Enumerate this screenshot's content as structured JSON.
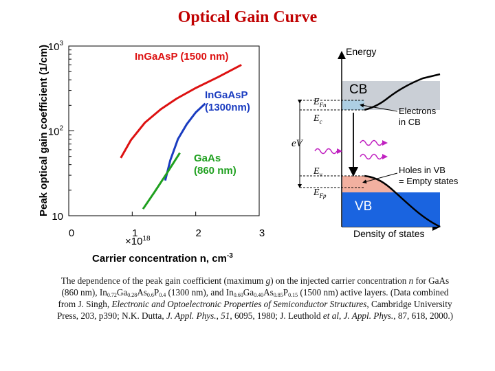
{
  "slide": {
    "title": "Optical Gain Curve"
  },
  "colors": {
    "title": "#c00000",
    "inp1500": "#dd1111",
    "inp1300": "#1a3cc0",
    "gaas": "#1fa01f",
    "cb": "#b8c0c8",
    "vb": "#1a64e0",
    "holes": "#f2b0a0"
  },
  "chart_data": {
    "type": "line",
    "ylabel": "Peak optical gain coefficient (1/cm)",
    "xlabel": "Carrier concentration n, cm",
    "xlabel_exp": "-3",
    "x_scale_label": "×10",
    "x_scale_exp": "18",
    "y_scale": "log",
    "xlim": [
      0,
      3
    ],
    "ylim": [
      10,
      1000
    ],
    "xticks": [
      {
        "v": 0,
        "label": "0"
      },
      {
        "v": 1,
        "label": "1"
      },
      {
        "v": 2,
        "label": "2"
      },
      {
        "v": 3,
        "label": "3"
      }
    ],
    "yticks": [
      {
        "v": 10,
        "label": "10"
      },
      {
        "v": 100,
        "label": "10",
        "exp": "2"
      },
      {
        "v": 1000,
        "label": "10",
        "exp": "3"
      }
    ],
    "series": [
      {
        "name": "InGaAsP (1500 nm)",
        "name_lines": [
          "InGaAsP (1500 nm)"
        ],
        "color": "#dd1111",
        "x": [
          0.82,
          0.98,
          1.2,
          1.45,
          1.7,
          2.0,
          2.35,
          2.72
        ],
        "y": [
          48,
          78,
          125,
          180,
          240,
          320,
          430,
          600
        ]
      },
      {
        "name": "InGaAsP (1300nm)",
        "name_lines": [
          "InGaAsP",
          "(1300nm)"
        ],
        "color": "#1a3cc0",
        "x": [
          1.52,
          1.6,
          1.72,
          1.86,
          2.0,
          2.15
        ],
        "y": [
          26,
          45,
          80,
          120,
          165,
          210
        ]
      },
      {
        "name": "GaAs (860 nm)",
        "name_lines": [
          "GaAs",
          "(860 nm)"
        ],
        "color": "#1fa01f",
        "x": [
          1.17,
          1.35,
          1.55,
          1.75
        ],
        "y": [
          12,
          19,
          32,
          55
        ]
      }
    ]
  },
  "band_diagram": {
    "energy_label": "Energy",
    "cb_label": "CB",
    "vb_label": "VB",
    "efn": "E",
    "efn_sub": "Fn",
    "ec": "E",
    "ec_sub": "c",
    "ev": "E",
    "ev_sub": "v",
    "efp": "E",
    "efp_sub": "Fp",
    "ev_gap": "eV",
    "electrons_lines": [
      "Electrons",
      "in CB"
    ],
    "holes_lines": [
      "Holes in VB",
      "= Empty states"
    ],
    "dos_label": "Density of states"
  },
  "caption": {
    "p1": "The dependence of the peak gain coefficient (maximum ",
    "g": "g",
    "p2": ") on the injected carrier concentration ",
    "n": "n",
    "p3": " for GaAs (860 nm), In",
    "s1": "0.72",
    "p4": "Ga",
    "s2": "0.28",
    "p5": "As",
    "s3": "0.6",
    "p6": "P",
    "s4": "0.4",
    "p7": " (1300 nm), and In",
    "s5": "0.60",
    "p8": "Ga",
    "s6": "0.40",
    "p9": "As",
    "s7": "0.85",
    "p10": "P",
    "s8": "0.15",
    "p11": " (1500 nm) active layers. (Data combined from J. Singh, ",
    "book": "Electronic and Optoelectronic Properties of Semiconductor Structures",
    "p12": ", Cambridge University Press, 203, p390; N.K. Dutta, ",
    "jap1": "J. Appl. Phys.",
    "p13": ", ",
    "vol1": "51",
    "p14": ", 6095, 1980; J. Leuthold ",
    "etal": "et al",
    "p15": ", ",
    "jap2": "J. Appl. Phys.",
    "p16": ", 87, 618, 2000.)"
  }
}
